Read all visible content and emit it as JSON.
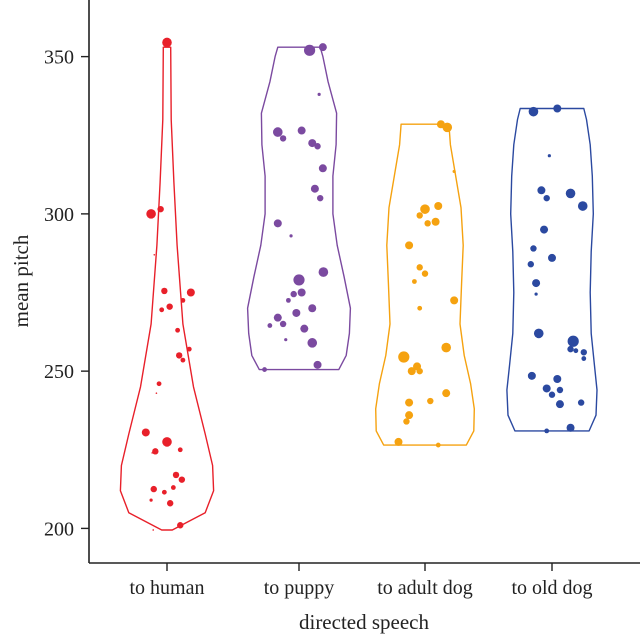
{
  "chart_data": {
    "type": "violin",
    "xlabel": "directed speech",
    "ylabel": "mean pitch",
    "ylim": [
      189,
      368
    ],
    "yticks": [
      200,
      250,
      300,
      350
    ],
    "categories": [
      "to human",
      "to puppy",
      "to adult dog",
      "to old dog"
    ],
    "series": [
      {
        "name": "to human",
        "color": "#e8202a",
        "violin": [
          [
            199.5,
            0.1
          ],
          [
            205,
            0.72
          ],
          [
            212,
            0.88
          ],
          [
            220,
            0.86
          ],
          [
            230,
            0.72
          ],
          [
            245,
            0.5
          ],
          [
            265,
            0.3
          ],
          [
            290,
            0.19
          ],
          [
            310,
            0.13
          ],
          [
            330,
            0.08
          ],
          [
            353,
            0.07
          ]
        ],
        "points": [
          {
            "dx": 0.0,
            "y": 354.5,
            "s": 6
          },
          {
            "dx": -0.3,
            "y": 300,
            "s": 6
          },
          {
            "dx": -0.12,
            "y": 301.5,
            "s": 4
          },
          {
            "dx": -0.24,
            "y": 287,
            "s": 1
          },
          {
            "dx": -0.05,
            "y": 275.5,
            "s": 4
          },
          {
            "dx": 0.45,
            "y": 275,
            "s": 5
          },
          {
            "dx": 0.3,
            "y": 272.5,
            "s": 3
          },
          {
            "dx": 0.05,
            "y": 270.5,
            "s": 4
          },
          {
            "dx": -0.1,
            "y": 269.5,
            "s": 3
          },
          {
            "dx": 0.2,
            "y": 263,
            "s": 3
          },
          {
            "dx": 0.42,
            "y": 257,
            "s": 3
          },
          {
            "dx": 0.23,
            "y": 255,
            "s": 4
          },
          {
            "dx": 0.3,
            "y": 253.5,
            "s": 3
          },
          {
            "dx": -0.15,
            "y": 246,
            "s": 3
          },
          {
            "dx": -0.2,
            "y": 243,
            "s": 1
          },
          {
            "dx": -0.4,
            "y": 230.5,
            "s": 5
          },
          {
            "dx": 0.0,
            "y": 227.5,
            "s": 6
          },
          {
            "dx": -0.22,
            "y": 224.5,
            "s": 4
          },
          {
            "dx": 0.25,
            "y": 225,
            "s": 3
          },
          {
            "dx": -0.28,
            "y": 224,
            "s": 1
          },
          {
            "dx": 0.17,
            "y": 217,
            "s": 4
          },
          {
            "dx": 0.28,
            "y": 215.5,
            "s": 4
          },
          {
            "dx": -0.25,
            "y": 212.5,
            "s": 4
          },
          {
            "dx": -0.05,
            "y": 211.5,
            "s": 3
          },
          {
            "dx": 0.12,
            "y": 213,
            "s": 3
          },
          {
            "dx": -0.3,
            "y": 209,
            "s": 2
          },
          {
            "dx": 0.06,
            "y": 208,
            "s": 4
          },
          {
            "dx": 0.25,
            "y": 201,
            "s": 4
          },
          {
            "dx": -0.26,
            "y": 199.5,
            "s": 1
          }
        ]
      },
      {
        "name": "to puppy",
        "color": "#7b4aa0",
        "violin": [
          [
            250.5,
            0.75
          ],
          [
            255,
            0.89
          ],
          [
            262,
            0.95
          ],
          [
            270,
            0.97
          ],
          [
            280,
            0.85
          ],
          [
            290,
            0.72
          ],
          [
            300,
            0.64
          ],
          [
            312,
            0.64
          ],
          [
            322,
            0.7
          ],
          [
            332,
            0.71
          ],
          [
            342,
            0.55
          ],
          [
            350,
            0.45
          ],
          [
            353,
            0.4
          ]
        ],
        "points": [
          {
            "dx": 0.2,
            "y": 352,
            "s": 7
          },
          {
            "dx": 0.45,
            "y": 353,
            "s": 5
          },
          {
            "dx": 0.38,
            "y": 338,
            "s": 2
          },
          {
            "dx": -0.4,
            "y": 326,
            "s": 6
          },
          {
            "dx": 0.05,
            "y": 326.5,
            "s": 5
          },
          {
            "dx": -0.3,
            "y": 324,
            "s": 4
          },
          {
            "dx": 0.25,
            "y": 322.5,
            "s": 5
          },
          {
            "dx": 0.35,
            "y": 321.5,
            "s": 4
          },
          {
            "dx": 0.45,
            "y": 314.5,
            "s": 5
          },
          {
            "dx": 0.3,
            "y": 308,
            "s": 5
          },
          {
            "dx": 0.4,
            "y": 305,
            "s": 4
          },
          {
            "dx": -0.4,
            "y": 297,
            "s": 5
          },
          {
            "dx": -0.15,
            "y": 293,
            "s": 2
          },
          {
            "dx": 0.46,
            "y": 281.5,
            "s": 6
          },
          {
            "dx": 0.0,
            "y": 279,
            "s": 7
          },
          {
            "dx": 0.05,
            "y": 275,
            "s": 5
          },
          {
            "dx": -0.1,
            "y": 274.5,
            "s": 4
          },
          {
            "dx": -0.2,
            "y": 272.5,
            "s": 3
          },
          {
            "dx": -0.05,
            "y": 268.5,
            "s": 5
          },
          {
            "dx": 0.25,
            "y": 270,
            "s": 5
          },
          {
            "dx": -0.4,
            "y": 267,
            "s": 5
          },
          {
            "dx": -0.3,
            "y": 265,
            "s": 4
          },
          {
            "dx": -0.55,
            "y": 264.5,
            "s": 3
          },
          {
            "dx": 0.1,
            "y": 263.5,
            "s": 5
          },
          {
            "dx": 0.25,
            "y": 259,
            "s": 6
          },
          {
            "dx": -0.25,
            "y": 260,
            "s": 2
          },
          {
            "dx": 0.35,
            "y": 252,
            "s": 5
          },
          {
            "dx": -0.65,
            "y": 250.5,
            "s": 3
          }
        ]
      },
      {
        "name": "to adult dog",
        "color": "#f5a210",
        "violin": [
          [
            226.5,
            0.78
          ],
          [
            231,
            0.92
          ],
          [
            238,
            0.93
          ],
          [
            246,
            0.86
          ],
          [
            255,
            0.74
          ],
          [
            265,
            0.66
          ],
          [
            278,
            0.69
          ],
          [
            290,
            0.72
          ],
          [
            302,
            0.68
          ],
          [
            312,
            0.58
          ],
          [
            322,
            0.48
          ],
          [
            328.5,
            0.45
          ]
        ],
        "points": [
          {
            "dx": 0.3,
            "y": 328.5,
            "s": 5
          },
          {
            "dx": 0.42,
            "y": 327.5,
            "s": 6
          },
          {
            "dx": 0.55,
            "y": 313.5,
            "s": 2
          },
          {
            "dx": 0.0,
            "y": 301.5,
            "s": 6
          },
          {
            "dx": 0.25,
            "y": 302.5,
            "s": 5
          },
          {
            "dx": -0.1,
            "y": 299.5,
            "s": 4
          },
          {
            "dx": 0.2,
            "y": 297.5,
            "s": 5
          },
          {
            "dx": 0.05,
            "y": 297,
            "s": 4
          },
          {
            "dx": -0.3,
            "y": 290,
            "s": 5
          },
          {
            "dx": -0.1,
            "y": 283,
            "s": 4
          },
          {
            "dx": 0.0,
            "y": 281,
            "s": 4
          },
          {
            "dx": -0.2,
            "y": 278.5,
            "s": 3
          },
          {
            "dx": 0.55,
            "y": 272.5,
            "s": 5
          },
          {
            "dx": -0.1,
            "y": 270,
            "s": 3
          },
          {
            "dx": 0.4,
            "y": 257.5,
            "s": 6
          },
          {
            "dx": -0.4,
            "y": 254.5,
            "s": 7
          },
          {
            "dx": -0.15,
            "y": 251.5,
            "s": 5
          },
          {
            "dx": -0.25,
            "y": 250,
            "s": 5
          },
          {
            "dx": -0.1,
            "y": 250,
            "s": 4
          },
          {
            "dx": 0.4,
            "y": 243,
            "s": 5
          },
          {
            "dx": 0.1,
            "y": 240.5,
            "s": 4
          },
          {
            "dx": -0.3,
            "y": 240,
            "s": 5
          },
          {
            "dx": -0.3,
            "y": 236,
            "s": 5
          },
          {
            "dx": -0.35,
            "y": 234,
            "s": 4
          },
          {
            "dx": -0.5,
            "y": 227.5,
            "s": 5
          },
          {
            "dx": 0.25,
            "y": 226.5,
            "s": 3
          }
        ]
      },
      {
        "name": "to old dog",
        "color": "#2b49a0",
        "violin": [
          [
            231,
            0.7
          ],
          [
            236,
            0.83
          ],
          [
            244,
            0.85
          ],
          [
            252,
            0.8
          ],
          [
            262,
            0.74
          ],
          [
            275,
            0.72
          ],
          [
            288,
            0.74
          ],
          [
            300,
            0.78
          ],
          [
            312,
            0.76
          ],
          [
            322,
            0.72
          ],
          [
            330,
            0.65
          ],
          [
            333.5,
            0.6
          ]
        ],
        "points": [
          {
            "dx": -0.35,
            "y": 332.5,
            "s": 6
          },
          {
            "dx": 0.1,
            "y": 333.5,
            "s": 5
          },
          {
            "dx": -0.05,
            "y": 318.5,
            "s": 2
          },
          {
            "dx": -0.2,
            "y": 307.5,
            "s": 5
          },
          {
            "dx": 0.35,
            "y": 306.5,
            "s": 6
          },
          {
            "dx": -0.1,
            "y": 305,
            "s": 4
          },
          {
            "dx": 0.58,
            "y": 302.5,
            "s": 6
          },
          {
            "dx": -0.15,
            "y": 295,
            "s": 5
          },
          {
            "dx": -0.35,
            "y": 289,
            "s": 4
          },
          {
            "dx": 0.0,
            "y": 286,
            "s": 5
          },
          {
            "dx": -0.4,
            "y": 284,
            "s": 4
          },
          {
            "dx": -0.3,
            "y": 278,
            "s": 5
          },
          {
            "dx": -0.3,
            "y": 274.5,
            "s": 2
          },
          {
            "dx": -0.25,
            "y": 262,
            "s": 6
          },
          {
            "dx": 0.4,
            "y": 259.5,
            "s": 7
          },
          {
            "dx": 0.35,
            "y": 257,
            "s": 4
          },
          {
            "dx": 0.6,
            "y": 256,
            "s": 4
          },
          {
            "dx": 0.45,
            "y": 256.5,
            "s": 3
          },
          {
            "dx": 0.6,
            "y": 254,
            "s": 3
          },
          {
            "dx": -0.38,
            "y": 248.5,
            "s": 5
          },
          {
            "dx": 0.1,
            "y": 247.5,
            "s": 5
          },
          {
            "dx": -0.1,
            "y": 244.5,
            "s": 5
          },
          {
            "dx": 0.15,
            "y": 244,
            "s": 4
          },
          {
            "dx": 0.0,
            "y": 242.5,
            "s": 4
          },
          {
            "dx": 0.55,
            "y": 240,
            "s": 4
          },
          {
            "dx": 0.15,
            "y": 239.5,
            "s": 5
          },
          {
            "dx": 0.35,
            "y": 232,
            "s": 5
          },
          {
            "dx": -0.1,
            "y": 231,
            "s": 3
          }
        ]
      }
    ]
  }
}
